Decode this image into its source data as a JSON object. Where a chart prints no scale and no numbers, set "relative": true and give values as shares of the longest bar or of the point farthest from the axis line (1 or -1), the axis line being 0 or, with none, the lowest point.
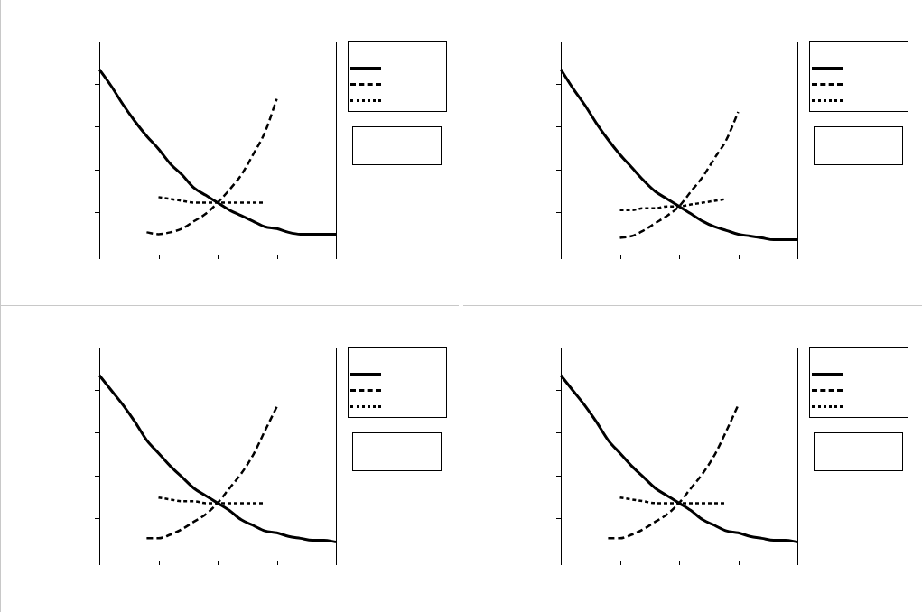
{
  "chart_data": [
    {
      "type": "line",
      "relative": true,
      "grid": false,
      "legend": false,
      "marker": "none",
      "tick_labels": false,
      "categories": [
        null,
        null,
        null,
        null,
        null,
        null,
        null,
        null,
        null,
        null,
        null,
        null,
        null,
        null,
        null,
        null,
        null,
        null,
        null,
        null,
        null
      ],
      "series": [
        {
          "color": "#000000",
          "line_style": "solid",
          "values": [
            1,
            0.91,
            0.81,
            0.72,
            0.64,
            0.57,
            0.49,
            0.43,
            0.36,
            0.32,
            0.28,
            0.24,
            0.21,
            0.18,
            0.15,
            0.14,
            0.12,
            0.11,
            0.11,
            0.11,
            0.11
          ]
        },
        {
          "color": "#000000",
          "line_style": "dashed",
          "values": [
            null,
            null,
            null,
            null,
            0.12,
            0.11,
            0.12,
            0.14,
            0.18,
            0.22,
            0.28,
            0.35,
            0.43,
            0.54,
            0.66,
            0.84,
            null,
            null,
            null,
            null,
            null
          ]
        },
        {
          "color": "#000000",
          "line_style": "dotted",
          "values": [
            null,
            null,
            null,
            null,
            null,
            0.31,
            0.3,
            0.29,
            0.28,
            0.28,
            0.28,
            0.28,
            0.28,
            0.28,
            0.28,
            null,
            null,
            null,
            null,
            null,
            null
          ]
        }
      ]
    },
    {
      "type": "line",
      "relative": true,
      "grid": false,
      "legend": false,
      "marker": "none",
      "tick_labels": false,
      "categories": [
        null,
        null,
        null,
        null,
        null,
        null,
        null,
        null,
        null,
        null,
        null,
        null,
        null,
        null,
        null,
        null,
        null,
        null,
        null,
        null,
        null
      ],
      "series": [
        {
          "color": "#000000",
          "line_style": "solid",
          "values": [
            1,
            0.9,
            0.81,
            0.71,
            0.62,
            0.54,
            0.47,
            0.4,
            0.34,
            0.3,
            0.26,
            0.22,
            0.18,
            0.15,
            0.13,
            0.11,
            0.1,
            0.09,
            0.08,
            0.08,
            0.08
          ]
        },
        {
          "color": "#000000",
          "line_style": "dashed",
          "values": [
            null,
            null,
            null,
            null,
            null,
            0.09,
            0.1,
            0.13,
            0.17,
            0.21,
            0.26,
            0.34,
            0.42,
            0.52,
            0.62,
            0.77,
            null,
            null,
            null,
            null,
            null
          ]
        },
        {
          "color": "#000000",
          "line_style": "dotted",
          "values": [
            null,
            null,
            null,
            null,
            null,
            0.24,
            0.24,
            0.25,
            0.25,
            0.26,
            0.26,
            0.27,
            0.28,
            0.29,
            0.3,
            null,
            null,
            null,
            null,
            null,
            null
          ]
        }
      ]
    },
    {
      "type": "line",
      "relative": true,
      "grid": false,
      "legend": false,
      "marker": "none",
      "tick_labels": false,
      "categories": [
        null,
        null,
        null,
        null,
        null,
        null,
        null,
        null,
        null,
        null,
        null,
        null,
        null,
        null,
        null,
        null,
        null,
        null,
        null,
        null,
        null
      ],
      "series": [
        {
          "color": "#000000",
          "line_style": "solid",
          "values": [
            1,
            0.92,
            0.84,
            0.75,
            0.65,
            0.58,
            0.51,
            0.45,
            0.39,
            0.35,
            0.31,
            0.27,
            0.22,
            0.19,
            0.16,
            0.15,
            0.13,
            0.12,
            0.11,
            0.11,
            0.1
          ]
        },
        {
          "color": "#000000",
          "line_style": "dashed",
          "values": [
            null,
            null,
            null,
            null,
            0.12,
            0.12,
            0.14,
            0.17,
            0.21,
            0.25,
            0.31,
            0.39,
            0.47,
            0.57,
            0.7,
            0.83,
            null,
            null,
            null,
            null,
            null
          ]
        },
        {
          "color": "#000000",
          "line_style": "dotted",
          "values": [
            null,
            null,
            null,
            null,
            null,
            0.34,
            0.33,
            0.32,
            0.32,
            0.31,
            0.31,
            0.31,
            0.31,
            0.31,
            0.31,
            null,
            null,
            null,
            null,
            null,
            null
          ]
        }
      ]
    },
    {
      "type": "line",
      "relative": true,
      "grid": false,
      "legend": false,
      "marker": "none",
      "tick_labels": false,
      "categories": [
        null,
        null,
        null,
        null,
        null,
        null,
        null,
        null,
        null,
        null,
        null,
        null,
        null,
        null,
        null,
        null,
        null,
        null,
        null,
        null,
        null
      ],
      "series": [
        {
          "color": "#000000",
          "line_style": "solid",
          "values": [
            1,
            0.92,
            0.84,
            0.75,
            0.65,
            0.58,
            0.51,
            0.45,
            0.39,
            0.35,
            0.31,
            0.27,
            0.22,
            0.19,
            0.16,
            0.15,
            0.13,
            0.12,
            0.11,
            0.11,
            0.1
          ]
        },
        {
          "color": "#000000",
          "line_style": "dashed",
          "values": [
            null,
            null,
            null,
            null,
            0.12,
            0.12,
            0.14,
            0.17,
            0.21,
            0.25,
            0.31,
            0.39,
            0.47,
            0.57,
            0.7,
            0.84,
            null,
            null,
            null,
            null,
            null
          ]
        },
        {
          "color": "#000000",
          "line_style": "dotted",
          "values": [
            null,
            null,
            null,
            null,
            null,
            0.34,
            0.33,
            0.32,
            0.31,
            0.31,
            0.31,
            0.31,
            0.31,
            0.31,
            0.31,
            null,
            null,
            null,
            null,
            null,
            null
          ]
        }
      ]
    }
  ]
}
